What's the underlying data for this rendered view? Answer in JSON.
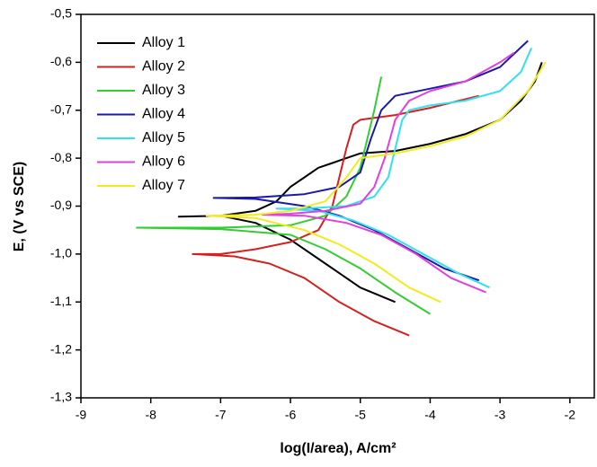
{
  "chart_data": {
    "type": "line",
    "x_label": "log(I/area), A/cm²",
    "y_label": "E, (V vs SCE)",
    "xlim": [
      -9,
      -1.65
    ],
    "ylim": [
      -1.3,
      -0.5
    ],
    "xticks": [
      -9,
      -8,
      -7,
      -6,
      -5,
      -4,
      -3,
      -2
    ],
    "yticks": [
      {
        "value": -0.5,
        "label": "-0,5"
      },
      {
        "value": -0.6,
        "label": "-0,6"
      },
      {
        "value": -0.7,
        "label": "-0,7"
      },
      {
        "value": -0.8,
        "label": "-0,8"
      },
      {
        "value": -0.9,
        "label": "-0,9"
      },
      {
        "value": -1.0,
        "label": "-1,0"
      },
      {
        "value": -1.1,
        "label": "-1,1"
      },
      {
        "value": -1.2,
        "label": "-1,2"
      },
      {
        "value": -1.3,
        "label": "-1,3"
      }
    ],
    "legend": "top-left",
    "series": [
      {
        "name": "Alloy 1",
        "color": "#000000",
        "x": [
          -4.5,
          -5,
          -5.5,
          -6,
          -6.5,
          -7,
          -7.6,
          -7,
          -6.5,
          -6.2,
          -6,
          -5.8,
          -5.6,
          -5.4,
          -5.2,
          -5,
          -4.5,
          -4,
          -3.5,
          -3,
          -2.7,
          -2.5,
          -2.4
        ],
        "values": [
          -1.1,
          -1.07,
          -1.02,
          -0.97,
          -0.935,
          -0.92,
          -0.922,
          -0.92,
          -0.91,
          -0.89,
          -0.86,
          -0.84,
          -0.82,
          -0.81,
          -0.8,
          -0.79,
          -0.785,
          -0.77,
          -0.75,
          -0.72,
          -0.68,
          -0.64,
          -0.6
        ]
      },
      {
        "name": "Alloy 2",
        "color": "#d62020",
        "x": [
          -4.3,
          -4.8,
          -5.3,
          -5.8,
          -6.3,
          -6.8,
          -7.4,
          -7,
          -6.5,
          -6,
          -5.6,
          -5.4,
          -5.3,
          -5.2,
          -5.1,
          -5,
          -4.5,
          -4,
          -3.3
        ],
        "values": [
          -1.17,
          -1.14,
          -1.1,
          -1.05,
          -1.02,
          -1.005,
          -1.0,
          -1.0,
          -0.99,
          -0.975,
          -0.95,
          -0.9,
          -0.84,
          -0.78,
          -0.73,
          -0.72,
          -0.71,
          -0.695,
          -0.67
        ]
      },
      {
        "name": "Alloy 3",
        "color": "#33cc33",
        "x": [
          -4.0,
          -4.5,
          -5,
          -5.5,
          -6,
          -7,
          -8.2,
          -7,
          -6,
          -5.5,
          -5.2,
          -5,
          -4.9,
          -4.8,
          -4.7
        ],
        "values": [
          -1.125,
          -1.08,
          -1.03,
          -0.99,
          -0.96,
          -0.948,
          -0.945,
          -0.945,
          -0.94,
          -0.92,
          -0.88,
          -0.82,
          -0.76,
          -0.7,
          -0.63
        ]
      },
      {
        "name": "Alloy 4",
        "color": "#1a1aa6",
        "x": [
          -3.3,
          -3.8,
          -4.3,
          -4.8,
          -5.3,
          -5.8,
          -6.5,
          -7.1,
          -6.5,
          -5.8,
          -5.3,
          -5,
          -4.85,
          -4.7,
          -4.5,
          -4,
          -3.5,
          -3,
          -2.6
        ],
        "values": [
          -1.055,
          -1.03,
          -0.99,
          -0.95,
          -0.92,
          -0.9,
          -0.885,
          -0.883,
          -0.882,
          -0.875,
          -0.86,
          -0.83,
          -0.76,
          -0.7,
          -0.67,
          -0.655,
          -0.64,
          -0.61,
          -0.555
        ]
      },
      {
        "name": "Alloy 5",
        "color": "#33e0f0",
        "x": [
          -3.15,
          -3.6,
          -4.1,
          -4.6,
          -5.1,
          -5.6,
          -6.2,
          -5.8,
          -5.2,
          -4.8,
          -4.6,
          -4.5,
          -4.4,
          -4.3,
          -4,
          -3.5,
          -3,
          -2.7,
          -2.55
        ],
        "values": [
          -1.07,
          -1.04,
          -1.0,
          -0.96,
          -0.93,
          -0.91,
          -0.905,
          -0.905,
          -0.9,
          -0.88,
          -0.84,
          -0.78,
          -0.72,
          -0.7,
          -0.69,
          -0.68,
          -0.66,
          -0.62,
          -0.57
        ]
      },
      {
        "name": "Alloy 6",
        "color": "#e040e0",
        "x": [
          -3.2,
          -3.7,
          -4.2,
          -4.7,
          -5.2,
          -5.8,
          -6.4,
          -6,
          -5.5,
          -5,
          -4.8,
          -4.65,
          -4.5,
          -4.3,
          -4,
          -3.5,
          -3,
          -2.8
        ],
        "values": [
          -1.08,
          -1.05,
          -1.0,
          -0.96,
          -0.935,
          -0.92,
          -0.918,
          -0.916,
          -0.91,
          -0.895,
          -0.86,
          -0.8,
          -0.72,
          -0.68,
          -0.66,
          -0.64,
          -0.6,
          -0.58
        ]
      },
      {
        "name": "Alloy 7",
        "color": "#f0ec20",
        "x": [
          -3.85,
          -4.3,
          -4.8,
          -5.3,
          -5.8,
          -6.5,
          -7.2,
          -6.5,
          -6,
          -5.5,
          -5.2,
          -5,
          -4.5,
          -4,
          -3.5,
          -3,
          -2.6,
          -2.35
        ],
        "values": [
          -1.1,
          -1.07,
          -1.02,
          -0.98,
          -0.95,
          -0.925,
          -0.92,
          -0.918,
          -0.91,
          -0.89,
          -0.84,
          -0.8,
          -0.79,
          -0.775,
          -0.755,
          -0.72,
          -0.66,
          -0.6
        ]
      }
    ]
  }
}
